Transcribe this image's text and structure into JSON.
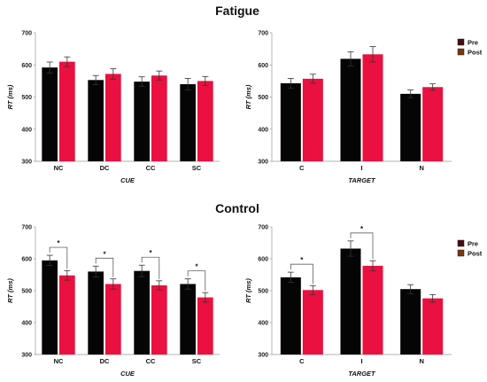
{
  "sections": [
    {
      "title": "Fatigue"
    },
    {
      "title": "Control"
    }
  ],
  "legend": {
    "pre": "Pre",
    "post": "Post"
  },
  "colors": {
    "pre": "#050505",
    "post": "#ea1040",
    "legend_pre": "#4a0a10",
    "legend_post": "#7a3510"
  },
  "chart_data": [
    {
      "type": "bar",
      "section": "Fatigue",
      "categories": [
        "NC",
        "DC",
        "CC",
        "SC"
      ],
      "xlabel": "CUE",
      "ylabel": "RT (ms)",
      "ylim": [
        300,
        700
      ],
      "yticks": [
        300,
        400,
        500,
        600,
        700
      ],
      "series": [
        {
          "name": "Pre",
          "values": [
            592,
            553,
            548,
            540
          ],
          "errors": [
            17,
            14,
            15,
            18
          ]
        },
        {
          "name": "Post",
          "values": [
            610,
            572,
            567,
            550
          ],
          "errors": [
            15,
            16,
            14,
            14
          ]
        }
      ],
      "significance": []
    },
    {
      "type": "bar",
      "section": "Fatigue",
      "categories": [
        "C",
        "I",
        "N"
      ],
      "xlabel": "TARGET",
      "ylabel": "RT (ms)",
      "ylim": [
        300,
        700
      ],
      "yticks": [
        300,
        400,
        500,
        600,
        700
      ],
      "series": [
        {
          "name": "Pre",
          "values": [
            543,
            619,
            510
          ],
          "errors": [
            15,
            22,
            12
          ]
        },
        {
          "name": "Post",
          "values": [
            557,
            633,
            531
          ],
          "errors": [
            14,
            24,
            10
          ]
        }
      ],
      "significance": [],
      "legend": "right"
    },
    {
      "type": "bar",
      "section": "Control",
      "categories": [
        "NC",
        "DC",
        "CC",
        "SC"
      ],
      "xlabel": "CUE",
      "ylabel": "RT (ms)",
      "ylim": [
        300,
        700
      ],
      "yticks": [
        300,
        400,
        500,
        600,
        700
      ],
      "series": [
        {
          "name": "Pre",
          "values": [
            595,
            560,
            562,
            521
          ],
          "errors": [
            16,
            17,
            18,
            16
          ]
        },
        {
          "name": "Post",
          "values": [
            548,
            521,
            517,
            479
          ],
          "errors": [
            15,
            16,
            14,
            15
          ]
        }
      ],
      "significance": [
        {
          "category": "NC",
          "label": "*"
        },
        {
          "category": "DC",
          "label": "*"
        },
        {
          "category": "CC",
          "label": "*"
        },
        {
          "category": "SC",
          "label": "*"
        }
      ]
    },
    {
      "type": "bar",
      "section": "Control",
      "categories": [
        "C",
        "I",
        "N"
      ],
      "xlabel": "TARGET",
      "ylabel": "RT (ms)",
      "ylim": [
        300,
        700
      ],
      "yticks": [
        300,
        400,
        500,
        600,
        700
      ],
      "series": [
        {
          "name": "Pre",
          "values": [
            542,
            632,
            505
          ],
          "errors": [
            16,
            24,
            14
          ]
        },
        {
          "name": "Post",
          "values": [
            502,
            578,
            476
          ],
          "errors": [
            14,
            16,
            12
          ]
        }
      ],
      "significance": [
        {
          "category": "C",
          "label": "*"
        },
        {
          "category": "I",
          "label": "*"
        }
      ],
      "legend": "right"
    }
  ]
}
